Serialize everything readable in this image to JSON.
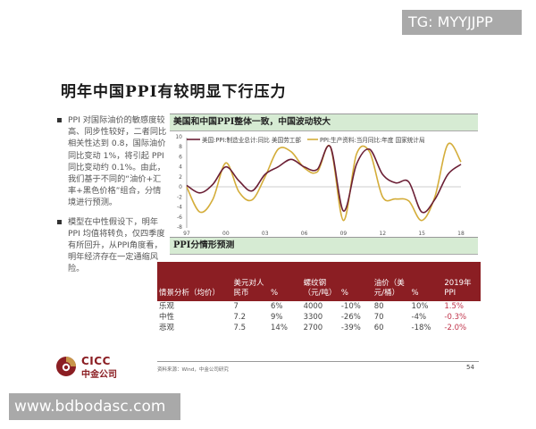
{
  "slide": {
    "title": "明年中国PPI有较明显下行压力",
    "bullets": [
      {
        "text": "PPI 对国际油价的敏感度较高、同步性较好，二者同比相关性达到 0.8，国际油价同比变动 1%，将引起 PPI 同比变动约 0.1%。由此，我们基于不同的“油价+汇率+黑色价格”组合，分情境进行预测。"
      },
      {
        "text": "模型在中性假设下，明年PPI 均值将转负，仅四季度有所回升，从PPI角度看，明年经济存在一定通缩风险。"
      }
    ],
    "chart_panel": {
      "title": "美国和中国PPI整体一致，中国波动较大"
    },
    "forecast_panel": {
      "title": "PPI分情形预测",
      "columns": [
        "情景分析（均价）",
        "美元对人民币",
        "%",
        "螺纹钢（元/吨）",
        "%",
        "油价（美元/桶）",
        "%",
        "2019年PPI"
      ],
      "rows": [
        [
          "乐观",
          "7",
          "6%",
          "4000",
          "-10%",
          "80",
          "10%",
          "1.5%"
        ],
        [
          "中性",
          "7.2",
          "9%",
          "3300",
          "-26%",
          "70",
          "-4%",
          "-0.3%"
        ],
        [
          "悲观",
          "7.5",
          "14%",
          "2700",
          "-39%",
          "60",
          "-18%",
          "-2.0%"
        ]
      ]
    },
    "source": "资料来源：Wind，中金公司研究",
    "page_number": "54",
    "logo": {
      "en": "CICC",
      "cn": "中金公司",
      "icon": "cicc-logo-icon"
    }
  },
  "watermarks": {
    "top": "TG: MYYJJPP",
    "bottom": "www.bdbodasc.com"
  },
  "colors": {
    "us_series": "#6b1f35",
    "cn_series": "#d4ad3a",
    "table_header": "#8b1e23",
    "panel_header_bg": "#d6ebd3",
    "ppi_value": "#c0334a"
  },
  "chart_data": {
    "type": "line",
    "title": "美国和中国PPI整体一致，中国波动较大",
    "xlabel": "",
    "ylabel": "",
    "x_tick_labels": [
      "97",
      "00",
      "03",
      "06",
      "09",
      "12",
      "15",
      "18"
    ],
    "y_tick_labels": [
      "10",
      "8",
      "6",
      "4",
      "2",
      "0",
      "-2",
      "-4",
      "-6",
      "-8"
    ],
    "ylim": [
      -8,
      10
    ],
    "grid": false,
    "legend_position": "top",
    "x": [
      1997,
      1998,
      1999,
      2000,
      2001,
      2002,
      2003,
      2004,
      2005,
      2006,
      2007,
      2008,
      2009,
      2010,
      2011,
      2012,
      2013,
      2014,
      2015,
      2016,
      2017,
      2018
    ],
    "series": [
      {
        "name": "美国:PPI:制造业总计:同比 美国劳工部",
        "color": "#6b1f35",
        "values": [
          0.3,
          -1.2,
          0.5,
          4.0,
          1.2,
          -0.8,
          2.5,
          4.0,
          5.5,
          4.0,
          3.5,
          8.0,
          -4.8,
          4.5,
          7.5,
          2.5,
          0.8,
          1.0,
          -5.0,
          -2.5,
          2.5,
          4.5
        ]
      },
      {
        "name": "PPI:生产资料:当月同比:年度 国家统计局",
        "color": "#d4ad3a",
        "values": [
          0.0,
          -5.0,
          -2.5,
          4.8,
          -1.0,
          -2.6,
          2.0,
          7.5,
          7.0,
          3.8,
          3.0,
          8.0,
          -6.7,
          6.5,
          7.0,
          -2.0,
          -2.4,
          -2.8,
          -6.7,
          -2.0,
          8.5,
          5.0
        ]
      }
    ]
  }
}
